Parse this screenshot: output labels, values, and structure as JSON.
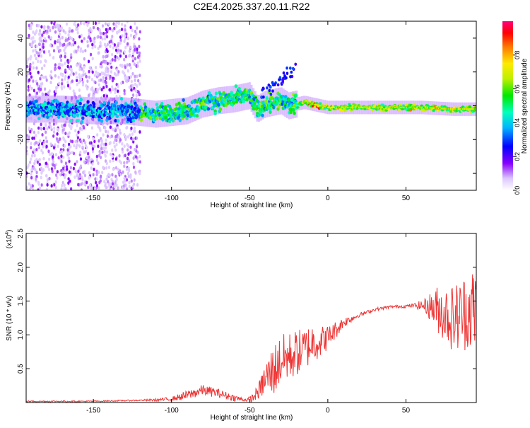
{
  "title": "C2E4.2025.337.20.11.R22",
  "chart_data": [
    {
      "type": "heatmap",
      "title": "C2E4.2025.337.20.11.R22",
      "xlabel": "Height of straight line (km)",
      "ylabel": "Frequency (Hz)",
      "xlim": [
        -193,
        95
      ],
      "ylim": [
        -50,
        50
      ],
      "xticks": [
        -150,
        -100,
        -50,
        0,
        50
      ],
      "yticks": [
        -40,
        -20,
        0,
        20,
        40
      ],
      "colorbar": {
        "label": "Normalized spectral amplitude",
        "range": [
          0,
          1
        ],
        "ticks": [
          0.0,
          0.2,
          0.4,
          0.6,
          0.8
        ],
        "tick_labels": [
          "0.0",
          "0.2",
          "0.4",
          "0.6",
          "0.8"
        ]
      },
      "ridge": {
        "description": "dominant frequency vs height",
        "x": [
          -193,
          -170,
          -150,
          -130,
          -120,
          -110,
          -100,
          -90,
          -80,
          -70,
          -60,
          -50,
          -45,
          -40,
          -35,
          -30,
          -25,
          -20,
          -15,
          -10,
          -5,
          0,
          20,
          40,
          60,
          80,
          95
        ],
        "y": [
          -2,
          -2,
          -3,
          -3,
          -4,
          -5,
          -4,
          -3,
          1,
          3,
          4,
          6,
          -2,
          1,
          2,
          3,
          0,
          1,
          2,
          1,
          0,
          -1,
          -1,
          -1,
          -1,
          -2,
          -2
        ]
      },
      "scatter_region": {
        "x_range": [
          -193,
          -120
        ],
        "description": "diffuse low-amplitude noise"
      }
    },
    {
      "type": "line",
      "xlabel": "Height of straight line (km)",
      "ylabel": "SNR (10 * v/v)",
      "y_multiplier": "(x10^4)",
      "y_multiplier_base": "(x10",
      "y_multiplier_exp": "4",
      "y_multiplier_close": ")",
      "xlim": [
        -193,
        95
      ],
      "ylim": [
        0,
        2.5
      ],
      "xticks": [
        -150,
        -100,
        -50,
        0,
        50
      ],
      "yticks": [
        0.5,
        1.0,
        1.5,
        2.0,
        2.5
      ],
      "series": [
        {
          "name": "SNR",
          "color": "#ee3333",
          "envelope_x": [
            -193,
            -150,
            -110,
            -100,
            -90,
            -80,
            -70,
            -60,
            -52,
            -48,
            -44,
            -40,
            -35,
            -30,
            -25,
            -20,
            -15,
            -10,
            -5,
            0,
            5,
            10,
            15,
            20,
            30,
            40,
            50,
            55,
            60,
            65,
            70,
            75,
            80,
            85,
            90,
            95
          ],
          "envelope_y": [
            0.02,
            0.02,
            0.04,
            0.06,
            0.12,
            0.2,
            0.15,
            0.08,
            0.04,
            0.08,
            0.2,
            0.4,
            0.55,
            0.7,
            0.75,
            0.8,
            0.85,
            0.95,
            0.95,
            1.0,
            1.1,
            1.2,
            1.25,
            1.3,
            1.38,
            1.42,
            1.43,
            1.44,
            1.45,
            1.46,
            1.45,
            1.4,
            1.35,
            1.4,
            1.5,
            1.5
          ],
          "noise_x": [
            -193,
            -120,
            -100,
            -90,
            -80,
            -60,
            -52,
            -45,
            -40,
            -35,
            -20,
            -10,
            0,
            10,
            20,
            40,
            55,
            62,
            70,
            80,
            90,
            95
          ],
          "noise_amp": [
            0.01,
            0.01,
            0.03,
            0.07,
            0.08,
            0.05,
            0.02,
            0.1,
            0.25,
            0.4,
            0.35,
            0.3,
            0.18,
            0.08,
            0.03,
            0.02,
            0.03,
            0.1,
            0.35,
            0.5,
            0.6,
            0.7
          ]
        }
      ]
    }
  ]
}
